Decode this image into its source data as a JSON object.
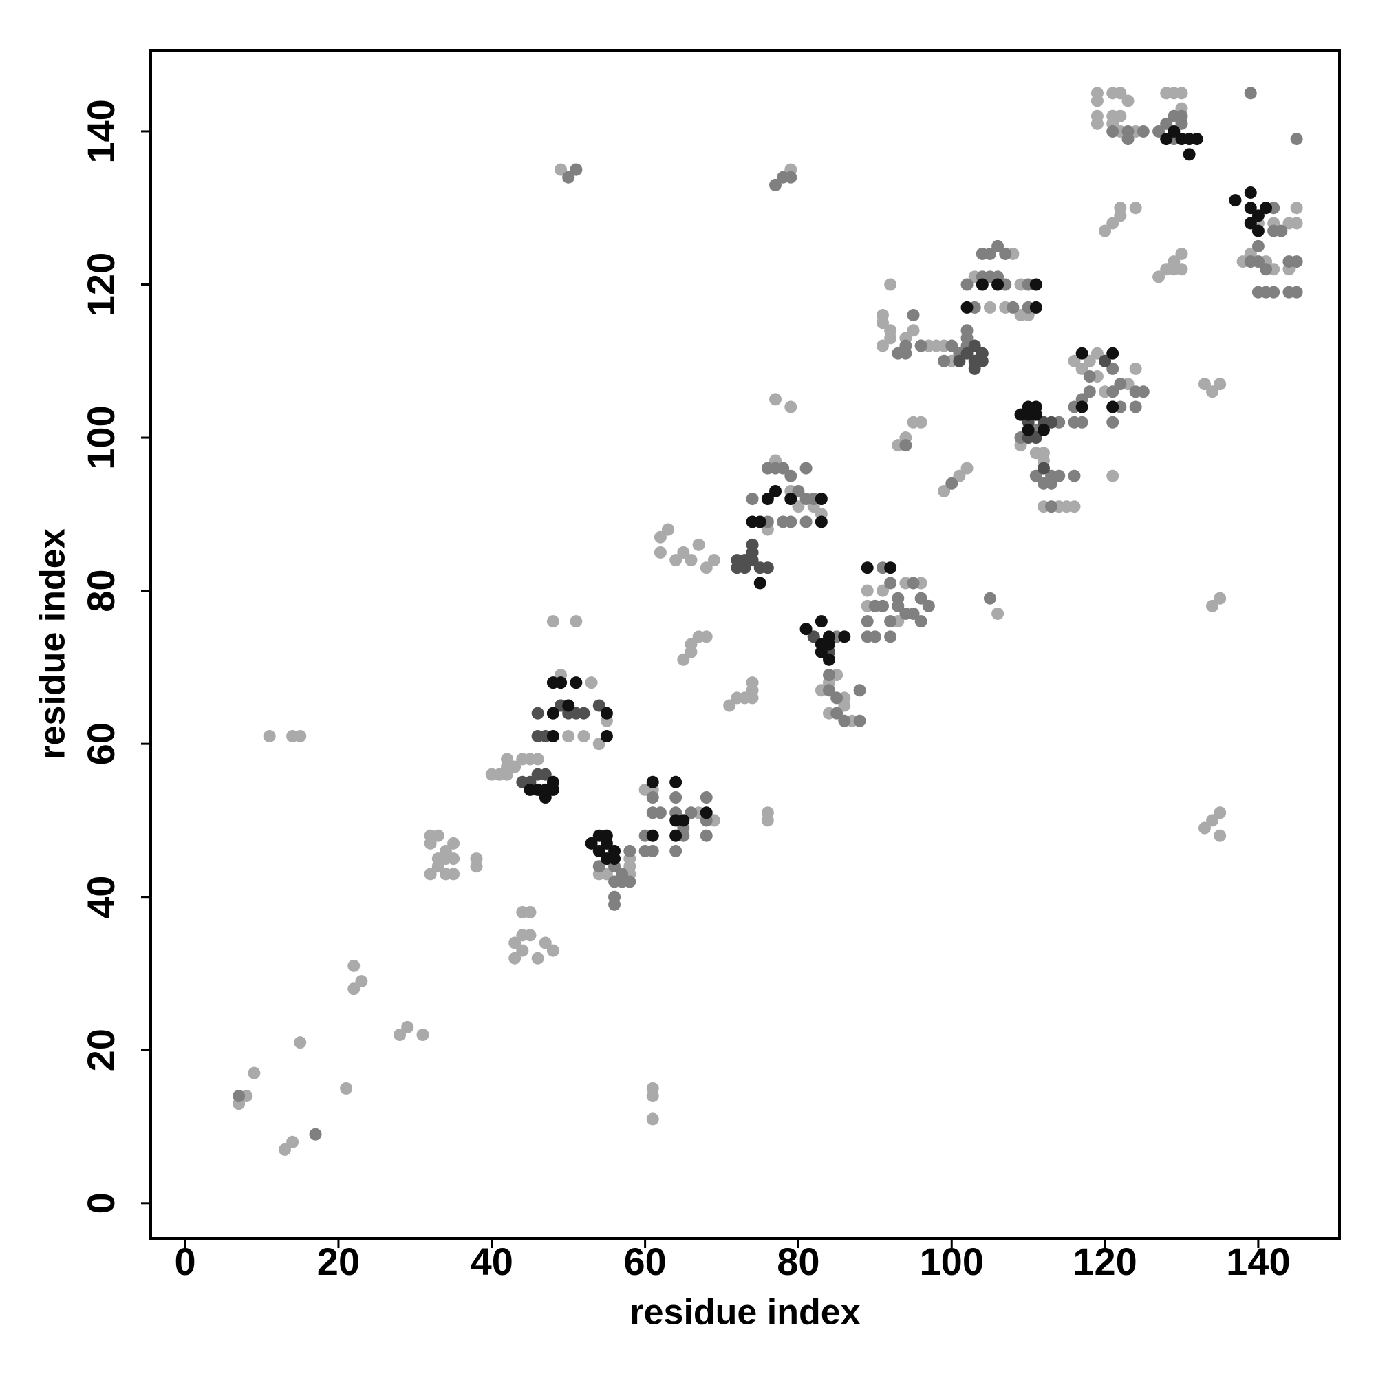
{
  "chart_data": {
    "type": "scatter",
    "x_label": "residue index",
    "y_label": "residue index",
    "xlim": [
      -4.5,
      150.6
    ],
    "ylim": [
      -4.6,
      150.6
    ],
    "xticks": [
      0,
      20,
      40,
      60,
      80,
      100,
      120,
      140
    ],
    "yticks": [
      0,
      20,
      40,
      60,
      80,
      100,
      120,
      140
    ],
    "grid": false,
    "series": [
      {
        "color": "#aaaaaa",
        "x": [
          7,
          8,
          9,
          13,
          14,
          15,
          21,
          22,
          22,
          23,
          28,
          29,
          31,
          11,
          14,
          15,
          61,
          61,
          61,
          32,
          32,
          33,
          33,
          34,
          34,
          35,
          35,
          32,
          33,
          34,
          35,
          38,
          38,
          43,
          44,
          45,
          46,
          47,
          48,
          43,
          44,
          44,
          45,
          40,
          41,
          42,
          42,
          42,
          43,
          44,
          45,
          46,
          49,
          50,
          52,
          53,
          54,
          55,
          50,
          51,
          48,
          49,
          51,
          58,
          58,
          58,
          55,
          54,
          60,
          61,
          67,
          69,
          62,
          62,
          63,
          63,
          64,
          65,
          66,
          67,
          68,
          69,
          65,
          66,
          66,
          67,
          68,
          71,
          72,
          73,
          74,
          74,
          74,
          76,
          76,
          80,
          82,
          77,
          83,
          76,
          79,
          77,
          79,
          79,
          83,
          84,
          85,
          86,
          86,
          84,
          87,
          89,
          89,
          91,
          94,
          96,
          93,
          99,
          101,
          102,
          93,
          94,
          95,
          96,
          92,
          106,
          91,
          91,
          91,
          92,
          94,
          95,
          96,
          97,
          98,
          99,
          100,
          92,
          103,
          105,
          107,
          108,
          109,
          109,
          110,
          103,
          112,
          114,
          115,
          116,
          112,
          112,
          109,
          111,
          116,
          117,
          119,
          119,
          120,
          121,
          123,
          124,
          118,
          119,
          119,
          119,
          119,
          121,
          122,
          123,
          121,
          121,
          122,
          124,
          128,
          129,
          130,
          130,
          122,
          120,
          121,
          122,
          122,
          124,
          127,
          128,
          129,
          129,
          130,
          130,
          133,
          134,
          135,
          134,
          135,
          133,
          134,
          135,
          135,
          138,
          139,
          141,
          142,
          144,
          145,
          145,
          140,
          144,
          142
        ],
        "y": [
          13,
          14,
          17,
          7,
          8,
          21,
          15,
          28,
          31,
          29,
          22,
          23,
          22,
          61,
          61,
          61,
          11,
          14,
          15,
          43,
          47,
          44,
          48,
          45,
          46,
          43,
          47,
          48,
          45,
          43,
          45,
          44,
          45,
          34,
          33,
          35,
          32,
          34,
          33,
          32,
          38,
          35,
          38,
          56,
          56,
          56,
          57,
          58,
          57,
          58,
          58,
          58,
          69,
          61,
          61,
          68,
          60,
          63,
          65,
          76,
          76,
          135,
          135,
          43,
          44,
          45,
          43,
          43,
          54,
          54,
          51,
          50,
          85,
          87,
          88,
          88,
          84,
          85,
          84,
          86,
          83,
          84,
          71,
          72,
          73,
          74,
          74,
          65,
          66,
          66,
          67,
          68,
          66,
          50,
          51,
          91,
          91,
          97,
          90,
          88,
          93,
          105,
          104,
          135,
          67,
          68,
          69,
          66,
          65,
          64,
          63,
          78,
          80,
          80,
          81,
          81,
          76,
          93,
          95,
          96,
          99,
          100,
          102,
          102,
          120,
          77,
          116,
          115,
          112,
          114,
          113,
          114,
          112,
          112,
          112,
          112,
          110,
          113,
          117,
          117,
          117,
          124,
          120,
          116,
          116,
          121,
          91,
          91,
          91,
          91,
          97,
          98,
          99,
          98,
          110,
          109,
          108,
          111,
          106,
          95,
          107,
          109,
          110,
          145,
          144,
          141,
          142,
          145,
          145,
          144,
          142,
          141,
          140,
          140,
          145,
          145,
          145,
          143,
          142,
          127,
          128,
          129,
          130,
          130,
          121,
          122,
          122,
          123,
          122,
          124,
          107,
          106,
          107,
          78,
          79,
          49,
          50,
          51,
          48,
          123,
          124,
          123,
          128,
          128,
          128,
          130,
          128,
          122,
          122
        ]
      },
      {
        "color": "#808080",
        "x": [
          7,
          17,
          48,
          49,
          50,
          51,
          54,
          56,
          57,
          58,
          56,
          57,
          58,
          56,
          56,
          60,
          61,
          60,
          61,
          62,
          64,
          65,
          65,
          66,
          68,
          68,
          64,
          61,
          64,
          68,
          77,
          78,
          79,
          74,
          76,
          77,
          78,
          79,
          81,
          80,
          81,
          82,
          76,
          78,
          79,
          81,
          82,
          85,
          84,
          84,
          85,
          85,
          88,
          86,
          88,
          89,
          89,
          91,
          91,
          92,
          92,
          92,
          93,
          94,
          95,
          95,
          96,
          96,
          97,
          93,
          90,
          90,
          100,
          94,
          105,
          93,
          94,
          94,
          95,
          96,
          99,
          100,
          101,
          102,
          102,
          102,
          102,
          103,
          104,
          104,
          105,
          105,
          106,
          106,
          107,
          107,
          108,
          110,
          110,
          111,
          113,
          114,
          114,
          116,
          112,
          113,
          113,
          111,
          109,
          116,
          116,
          117,
          117,
          118,
          118,
          120,
          121,
          121,
          121,
          122,
          122,
          124,
          125,
          124,
          121,
          123,
          123,
          125,
          127,
          128,
          129,
          130,
          130,
          129,
          139,
          145,
          139,
          140,
          140,
          141,
          142,
          142,
          143,
          144,
          145,
          140,
          141,
          142,
          144,
          145
        ],
        "y": [
          14,
          9,
          64,
          65,
          134,
          135,
          44,
          44,
          43,
          46,
          42,
          42,
          42,
          40,
          39,
          46,
          46,
          48,
          51,
          51,
          51,
          48,
          49,
          51,
          48,
          50,
          46,
          53,
          53,
          53,
          133,
          134,
          134,
          92,
          96,
          96,
          96,
          95,
          96,
          93,
          92,
          92,
          89,
          89,
          89,
          89,
          74,
          74,
          69,
          67,
          66,
          64,
          67,
          63,
          63,
          76,
          74,
          83,
          78,
          81,
          76,
          74,
          78,
          77,
          77,
          81,
          79,
          76,
          78,
          79,
          78,
          74,
          94,
          99,
          79,
          111,
          112,
          111,
          116,
          112,
          110,
          112,
          111,
          112,
          114,
          113,
          120,
          117,
          124,
          121,
          124,
          121,
          125,
          121,
          124,
          120,
          117,
          117,
          120,
          101,
          95,
          95,
          102,
          95,
          94,
          94,
          91,
          95,
          100,
          102,
          104,
          102,
          105,
          108,
          106,
          110,
          106,
          109,
          102,
          104,
          107,
          106,
          106,
          104,
          140,
          139,
          140,
          140,
          140,
          141,
          142,
          142,
          141,
          139,
          145,
          139,
          123,
          125,
          123,
          122,
          130,
          127,
          127,
          123,
          123,
          119,
          119,
          119,
          119,
          119
        ]
      },
      {
        "color": "#505050",
        "x": [
          44,
          45,
          46,
          47,
          46,
          46,
          47,
          50,
          51,
          49,
          52,
          54,
          72,
          72,
          73,
          74,
          74,
          74,
          75,
          76,
          73,
          84,
          82,
          101,
          102,
          103,
          103,
          104,
          104,
          103,
          110,
          110,
          111,
          112,
          113,
          110,
          112,
          120,
          121
        ],
        "y": [
          55,
          55,
          56,
          56,
          61,
          64,
          61,
          64,
          64,
          65,
          64,
          65,
          83,
          84,
          84,
          85,
          86,
          84,
          83,
          83,
          83,
          72,
          74,
          110,
          111,
          110,
          109,
          110,
          111,
          112,
          100,
          102,
          100,
          102,
          102,
          101,
          96,
          110,
          104
        ]
      },
      {
        "color": "#111111",
        "x": [
          45,
          46,
          47,
          47,
          48,
          48,
          48,
          48,
          48,
          49,
          50,
          51,
          55,
          55,
          53,
          54,
          54,
          55,
          55,
          55,
          56,
          56,
          61,
          64,
          61,
          64,
          64,
          68,
          65,
          76,
          77,
          79,
          83,
          83,
          75,
          74,
          75,
          81,
          83,
          83,
          84,
          84,
          86,
          83,
          84,
          89,
          92,
          102,
          104,
          106,
          111,
          111,
          110,
          110,
          111,
          111,
          109,
          110,
          112,
          117,
          117,
          121,
          121,
          128,
          129,
          130,
          131,
          132,
          131,
          137,
          139,
          139,
          139,
          140,
          140,
          141
        ],
        "y": [
          54,
          54,
          53,
          54,
          55,
          54,
          61,
          64,
          68,
          68,
          65,
          68,
          61,
          64,
          47,
          46,
          48,
          45,
          47,
          48,
          45,
          46,
          55,
          55,
          48,
          48,
          50,
          51,
          50,
          92,
          93,
          92,
          92,
          89,
          89,
          89,
          81,
          75,
          76,
          73,
          73,
          74,
          74,
          72,
          71,
          83,
          83,
          117,
          120,
          120,
          120,
          117,
          103,
          104,
          104,
          103,
          103,
          101,
          101,
          111,
          104,
          111,
          104,
          139,
          140,
          139,
          139,
          139,
          137,
          131,
          132,
          130,
          128,
          129,
          127,
          130
        ]
      }
    ]
  }
}
